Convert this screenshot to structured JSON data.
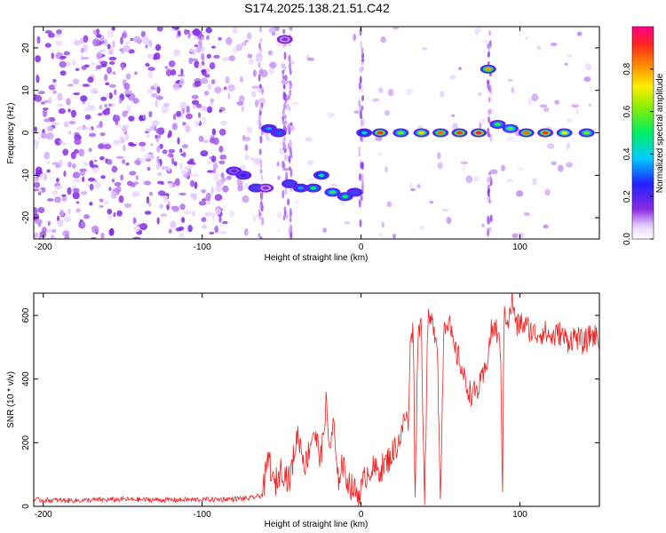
{
  "figure": {
    "title": "S174.2025.138.21.51.C42"
  },
  "chart_data": [
    {
      "type": "heatmap",
      "title": "S174.2025.138.21.51.C42",
      "xlabel": "Height of straight line (km)",
      "ylabel": "Frequency (Hz)",
      "xlim": [
        -206,
        150
      ],
      "ylim": [
        -25,
        25
      ],
      "xticks": [
        -200,
        -100,
        0,
        100
      ],
      "yticks": [
        -20,
        -10,
        0,
        10,
        20
      ],
      "colorbar": {
        "label": "Normalized spectral amplitude",
        "range": [
          0,
          1
        ],
        "ticks": [
          0.0,
          0.2,
          0.4,
          0.6,
          0.8
        ],
        "tick_labels": [
          "0.0",
          "0.2",
          "0.4",
          "0.6",
          "0.8"
        ]
      },
      "track": [
        {
          "x": -80,
          "y": -9,
          "amp": 0.2
        },
        {
          "x": -74,
          "y": -10,
          "amp": 0.25
        },
        {
          "x": -66,
          "y": -13,
          "amp": 0.3
        },
        {
          "x": -60,
          "y": -13,
          "amp": 0.15
        },
        {
          "x": -58,
          "y": 1,
          "amp": 0.35
        },
        {
          "x": -52,
          "y": 0,
          "amp": 0.3
        },
        {
          "x": -48,
          "y": 22,
          "amp": 0.15
        },
        {
          "x": -45,
          "y": -12,
          "amp": 0.3
        },
        {
          "x": -38,
          "y": -13,
          "amp": 0.35
        },
        {
          "x": -30,
          "y": -13,
          "amp": 0.5
        },
        {
          "x": -25,
          "y": -10,
          "amp": 0.45
        },
        {
          "x": -18,
          "y": -14,
          "amp": 0.55
        },
        {
          "x": -10,
          "y": -15,
          "amp": 0.5
        },
        {
          "x": -4,
          "y": -14,
          "amp": 0.3
        },
        {
          "x": 2,
          "y": 0,
          "amp": 0.4
        },
        {
          "x": 12,
          "y": 0,
          "amp": 0.9
        },
        {
          "x": 25,
          "y": 0,
          "amp": 0.6
        },
        {
          "x": 38,
          "y": 0,
          "amp": 0.75
        },
        {
          "x": 50,
          "y": 0,
          "amp": 0.85
        },
        {
          "x": 62,
          "y": 0,
          "amp": 0.9
        },
        {
          "x": 74,
          "y": 0,
          "amp": 0.95
        },
        {
          "x": 80,
          "y": 15,
          "amp": 0.8
        },
        {
          "x": 86,
          "y": 2,
          "amp": 0.55
        },
        {
          "x": 94,
          "y": 1,
          "amp": 0.6
        },
        {
          "x": 104,
          "y": 0,
          "amp": 0.85
        },
        {
          "x": 116,
          "y": 0,
          "amp": 0.9
        },
        {
          "x": 128,
          "y": 0,
          "amp": 0.7
        },
        {
          "x": 142,
          "y": 0,
          "amp": 0.6
        }
      ]
    },
    {
      "type": "line",
      "xlabel": "Height of straight line (km)",
      "ylabel": "SNR (10 * v/v)",
      "xlim": [
        -206,
        150
      ],
      "ylim": [
        0,
        670
      ],
      "xticks": [
        -200,
        -100,
        0,
        100
      ],
      "yticks": [
        0,
        200,
        400,
        600
      ],
      "color": "#ee2222",
      "series": [
        {
          "x": [
            -206,
            -180,
            -150,
            -120,
            -90,
            -70,
            -62,
            -58,
            -55,
            -50,
            -45,
            -40,
            -35,
            -30,
            -25,
            -22,
            -20,
            -17,
            -15,
            -12,
            -10,
            -6,
            -2,
            0,
            3,
            6,
            10,
            15,
            20,
            25,
            28,
            30,
            31,
            33,
            34,
            36,
            38,
            40,
            42,
            44,
            46,
            48,
            50,
            52,
            55,
            58,
            62,
            66,
            70,
            74,
            78,
            82,
            85,
            88,
            89,
            90,
            93,
            95,
            98,
            100,
            105,
            110,
            115,
            120,
            125,
            130,
            135,
            140,
            145,
            150
          ],
          "y": [
            20,
            18,
            22,
            20,
            22,
            25,
            35,
            160,
            60,
            120,
            80,
            230,
            130,
            240,
            150,
            330,
            180,
            260,
            70,
            140,
            100,
            60,
            40,
            50,
            100,
            120,
            110,
            130,
            170,
            220,
            290,
            250,
            560,
            540,
            0,
            580,
            560,
            0,
            580,
            580,
            560,
            520,
            0,
            570,
            590,
            500,
            460,
            380,
            350,
            370,
            420,
            550,
            560,
            480,
            0,
            620,
            580,
            650,
            560,
            580,
            560,
            540,
            550,
            530,
            545,
            520,
            535,
            510,
            540,
            530
          ]
        }
      ]
    }
  ]
}
